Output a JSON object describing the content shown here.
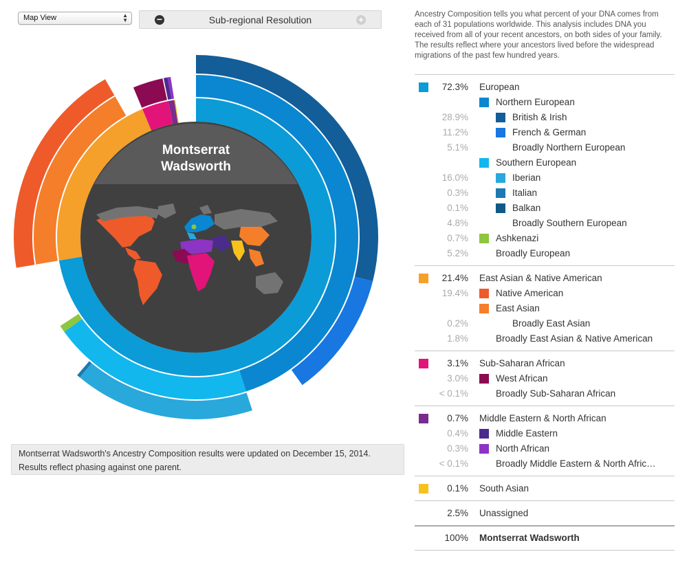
{
  "controls": {
    "view_select": "Map View",
    "resolution_label": "Sub-regional Resolution"
  },
  "chart": {
    "name_line1": "Montserrat",
    "name_line2": "Wadsworth"
  },
  "update_note": {
    "line1": "Montserrat Wadsworth's Ancestry Composition results were updated on December 15, 2014.",
    "line2": "Results reflect phasing against one parent."
  },
  "intro": "Ancestry Composition tells you what percent of your DNA comes from each of 31 populations worldwide. This analysis includes DNA you received from all of your recent ancestors, on both sides of your family. The results reflect where your ancestors lived before the widespread migrations of the past few hundred years.",
  "legend": {
    "groups": [
      {
        "rows": [
          {
            "pct": "72.3%",
            "label": "European",
            "color": "#0b9bd7",
            "level": 0
          },
          {
            "pct": "",
            "label": "Northern European",
            "color": "#0a87d0",
            "level": 1
          },
          {
            "pct": "28.9%",
            "label": "British & Irish",
            "color": "#135d98",
            "level": 2
          },
          {
            "pct": "11.2%",
            "label": "French & German",
            "color": "#1877e0",
            "level": 2
          },
          {
            "pct": "5.1%",
            "label": "Broadly Northern European",
            "color": "",
            "level": 2
          },
          {
            "pct": "",
            "label": "Southern European",
            "color": "#12b7ee",
            "level": 1
          },
          {
            "pct": "16.0%",
            "label": "Iberian",
            "color": "#29a8db",
            "level": 2
          },
          {
            "pct": "0.3%",
            "label": "Italian",
            "color": "#1c7ab1",
            "level": 2
          },
          {
            "pct": "0.1%",
            "label": "Balkan",
            "color": "#0f5a88",
            "level": 2
          },
          {
            "pct": "4.8%",
            "label": "Broadly Southern European",
            "color": "",
            "level": 2
          },
          {
            "pct": "0.7%",
            "label": "Ashkenazi",
            "color": "#8dc63f",
            "level": 1
          },
          {
            "pct": "5.2%",
            "label": "Broadly European",
            "color": "",
            "level": 1
          }
        ]
      },
      {
        "rows": [
          {
            "pct": "21.4%",
            "label": "East Asian & Native American",
            "color": "#f5a02a",
            "level": 0
          },
          {
            "pct": "19.4%",
            "label": "Native American",
            "color": "#ef5a2a",
            "level": 1
          },
          {
            "pct": "",
            "label": "East Asian",
            "color": "#f57e2a",
            "level": 1
          },
          {
            "pct": "0.2%",
            "label": "Broadly East Asian",
            "color": "",
            "level": 2
          },
          {
            "pct": "1.8%",
            "label": "Broadly East Asian & Native American",
            "color": "",
            "level": 1
          }
        ]
      },
      {
        "rows": [
          {
            "pct": "3.1%",
            "label": "Sub-Saharan African",
            "color": "#e2147a",
            "level": 0
          },
          {
            "pct": "3.0%",
            "label": "West African",
            "color": "#8b0b52",
            "level": 1
          },
          {
            "pct": "< 0.1%",
            "label": "Broadly Sub-Saharan African",
            "color": "",
            "level": 1
          }
        ]
      },
      {
        "rows": [
          {
            "pct": "0.7%",
            "label": "Middle Eastern & North African",
            "color": "#7a2b8e",
            "level": 0
          },
          {
            "pct": "0.4%",
            "label": "Middle Eastern",
            "color": "#4b2c8c",
            "level": 1
          },
          {
            "pct": "0.3%",
            "label": "North African",
            "color": "#8c34c4",
            "level": 1
          },
          {
            "pct": "< 0.1%",
            "label": "Broadly Middle Eastern & North Afric…",
            "color": "",
            "level": 1
          }
        ]
      },
      {
        "rows": [
          {
            "pct": "0.1%",
            "label": "South Asian",
            "color": "#f7c21d",
            "level": 0
          }
        ]
      },
      {
        "rows": [
          {
            "pct": "2.5%",
            "label": "Unassigned",
            "color": "",
            "level": 0
          }
        ]
      }
    ],
    "total": {
      "pct": "100%",
      "label": "Montserrat Wadsworth"
    }
  }
}
